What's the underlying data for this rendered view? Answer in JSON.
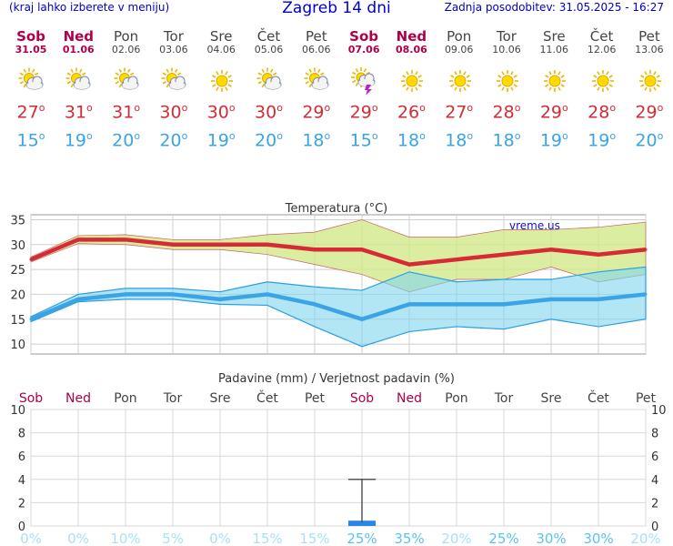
{
  "header": {
    "menu_hint": "(kraj lahko izberete v meniju)",
    "title": "Zagreb 14 dni",
    "updated": "Zadnja posodobitev: 31.05.2025 - 16:27"
  },
  "colors": {
    "max": "#d62b35",
    "min": "#3aa4e6",
    "weekend": "#b0004a",
    "prob": "#7fd3f5"
  },
  "days": [
    {
      "name": "Sob",
      "date": "31.05",
      "weekend": true,
      "icon": "sun-cloud-icon",
      "tmax": "27",
      "tmin": "15"
    },
    {
      "name": "Ned",
      "date": "01.06",
      "weekend": true,
      "icon": "sun-cloud-icon",
      "tmax": "31",
      "tmin": "19"
    },
    {
      "name": "Pon",
      "date": "02.06",
      "weekend": false,
      "icon": "sun-cloud-icon",
      "tmax": "31",
      "tmin": "20"
    },
    {
      "name": "Tor",
      "date": "03.06",
      "weekend": false,
      "icon": "sun-cloud-icon",
      "tmax": "30",
      "tmin": "20"
    },
    {
      "name": "Sre",
      "date": "04.06",
      "weekend": false,
      "icon": "sun-icon",
      "tmax": "30",
      "tmin": "19"
    },
    {
      "name": "Čet",
      "date": "05.06",
      "weekend": false,
      "icon": "sun-cloud-icon",
      "tmax": "30",
      "tmin": "20"
    },
    {
      "name": "Pet",
      "date": "06.06",
      "weekend": false,
      "icon": "sun-cloud-icon",
      "tmax": "29",
      "tmin": "18"
    },
    {
      "name": "Sob",
      "date": "07.06",
      "weekend": true,
      "icon": "thunderstorm-icon",
      "tmax": "29",
      "tmin": "15"
    },
    {
      "name": "Ned",
      "date": "08.06",
      "weekend": true,
      "icon": "sun-icon",
      "tmax": "26",
      "tmin": "18"
    },
    {
      "name": "Pon",
      "date": "09.06",
      "weekend": false,
      "icon": "sun-icon",
      "tmax": "27",
      "tmin": "18"
    },
    {
      "name": "Tor",
      "date": "10.06",
      "weekend": false,
      "icon": "sun-icon",
      "tmax": "28",
      "tmin": "18"
    },
    {
      "name": "Sre",
      "date": "11.06",
      "weekend": false,
      "icon": "sun-icon",
      "tmax": "29",
      "tmin": "19"
    },
    {
      "name": "Čet",
      "date": "12.06",
      "weekend": false,
      "icon": "sun-icon",
      "tmax": "28",
      "tmin": "19"
    },
    {
      "name": "Pet",
      "date": "13.06",
      "weekend": false,
      "icon": "sun-icon",
      "tmax": "29",
      "tmin": "20"
    }
  ],
  "chart_data": [
    {
      "type": "line",
      "title": "Temperatura (°C)",
      "watermark": "vreme.us",
      "ylim": [
        8,
        36
      ],
      "yticks": [
        10,
        15,
        20,
        25,
        30,
        35
      ],
      "grid": true,
      "categories": [
        "31.05",
        "01.06",
        "02.06",
        "03.06",
        "04.06",
        "05.06",
        "06.06",
        "07.06",
        "08.06",
        "09.06",
        "10.06",
        "11.06",
        "12.06",
        "13.06"
      ],
      "series": [
        {
          "values": [
            27,
            31,
            31,
            30,
            30,
            30,
            29,
            29,
            26,
            27,
            28,
            29,
            28,
            29
          ]
        },
        {
          "values": [
            15,
            19,
            20,
            20,
            19,
            20,
            18,
            15,
            18,
            18,
            18,
            19,
            19,
            20
          ]
        }
      ],
      "max_range_upper": [
        27.5,
        31.8,
        32.0,
        31.0,
        31.0,
        32.0,
        32.5,
        35.0,
        31.5,
        31.5,
        33.0,
        33.0,
        33.5,
        34.5
      ],
      "max_range_lower": [
        26.5,
        30.2,
        30.0,
        29.0,
        29.0,
        28.0,
        26.0,
        24.0,
        20.5,
        23.0,
        23.0,
        25.5,
        22.5,
        24.0
      ],
      "min_range_upper": [
        15.5,
        20.0,
        21.2,
        21.2,
        20.5,
        22.5,
        21.5,
        20.8,
        24.5,
        22.5,
        23.0,
        23.0,
        24.5,
        25.5
      ],
      "min_range_lower": [
        14.5,
        18.5,
        19.0,
        19.0,
        18.0,
        17.8,
        13.5,
        9.5,
        12.5,
        13.5,
        13.0,
        15.0,
        13.5,
        15.0
      ]
    },
    {
      "type": "bar",
      "title": "Padavine (mm) / Verjetnost padavin (%)",
      "ylim": [
        0,
        10
      ],
      "yticks": [
        0,
        2,
        4,
        6,
        8,
        10
      ],
      "categories": [
        "Sob",
        "Ned",
        "Pon",
        "Tor",
        "Sre",
        "Čet",
        "Pet",
        "Sob",
        "Ned",
        "Pon",
        "Tor",
        "Sre",
        "Čet",
        "Pet"
      ],
      "weekend": [
        true,
        true,
        false,
        false,
        false,
        false,
        false,
        true,
        true,
        false,
        false,
        false,
        false,
        false
      ],
      "values": [
        0,
        0,
        0,
        0,
        0,
        0,
        0,
        0.3,
        0,
        0,
        0,
        0,
        0,
        0
      ],
      "range_max": [
        0,
        0,
        0,
        0,
        0,
        0,
        0,
        4,
        0,
        0,
        0,
        0,
        0,
        0
      ],
      "probability": [
        "0%",
        "0%",
        "10%",
        "5%",
        "0%",
        "15%",
        "15%",
        "25%",
        "35%",
        "20%",
        "25%",
        "30%",
        "30%",
        "20%"
      ]
    }
  ]
}
